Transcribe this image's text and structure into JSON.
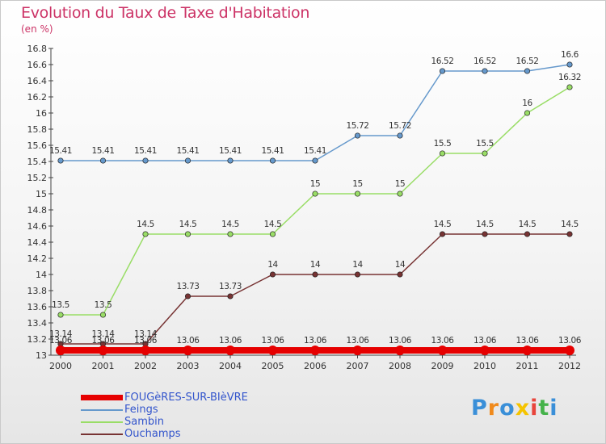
{
  "chart_data": {
    "type": "line",
    "title": "Evolution du Taux de Taxe d'Habitation",
    "subtitle": "(en %)",
    "xlabel": "",
    "ylabel": "",
    "categories": [
      "2000",
      "2001",
      "2002",
      "2003",
      "2004",
      "2005",
      "2006",
      "2007",
      "2008",
      "2009",
      "2010",
      "2011",
      "2012"
    ],
    "ylim": [
      13,
      16.8
    ],
    "yticks": [
      "13",
      "13.2",
      "13.4",
      "13.6",
      "13.8",
      "14",
      "14.2",
      "14.4",
      "14.6",
      "14.8",
      "15",
      "15.2",
      "15.4",
      "15.6",
      "15.8",
      "16",
      "16.2",
      "16.4",
      "16.6",
      "16.8"
    ],
    "grid": false,
    "legend_position": "bottom-left",
    "series": [
      {
        "name": "FOUGèRES-SUR-BIèVRE",
        "color": "#e60000",
        "values": [
          13.06,
          13.06,
          13.06,
          13.06,
          13.06,
          13.06,
          13.06,
          13.06,
          13.06,
          13.06,
          13.06,
          13.06,
          13.06
        ],
        "labels": [
          "13.06",
          "13.06",
          "13.06",
          "13.06",
          "13.06",
          "13.06",
          "13.06",
          "13.06",
          "13.06",
          "13.06",
          "13.06",
          "13.06",
          "13.06"
        ]
      },
      {
        "name": "Feings",
        "color": "#6699cc",
        "values": [
          15.41,
          15.41,
          15.41,
          15.41,
          15.41,
          15.41,
          15.41,
          15.72,
          15.72,
          16.52,
          16.52,
          16.52,
          16.6
        ],
        "labels": [
          "15.41",
          "15.41",
          "15.41",
          "15.41",
          "15.41",
          "15.41",
          "15.41",
          "15.72",
          "15.72",
          "16.52",
          "16.52",
          "16.52",
          "16.6"
        ]
      },
      {
        "name": "Sambin",
        "color": "#99dd66",
        "values": [
          13.5,
          13.5,
          14.5,
          14.5,
          14.5,
          14.5,
          15,
          15,
          15,
          15.5,
          15.5,
          16,
          16.32
        ],
        "labels": [
          "13.5",
          "13.5",
          "14.5",
          "14.5",
          "14.5",
          "14.5",
          "15",
          "15",
          "15",
          "15.5",
          "15.5",
          "16",
          "16.32"
        ]
      },
      {
        "name": "Ouchamps",
        "color": "#773333",
        "values": [
          13.14,
          13.14,
          13.14,
          13.73,
          13.73,
          14,
          14,
          14,
          14,
          14.5,
          14.5,
          14.5,
          14.5
        ],
        "labels": [
          "13.14",
          "13.14",
          "13.14",
          "13.73",
          "13.73",
          "14",
          "14",
          "14",
          "14",
          "14.5",
          "14.5",
          "14.5",
          "14.5"
        ]
      }
    ]
  },
  "logo": {
    "text": "Proxiti"
  }
}
